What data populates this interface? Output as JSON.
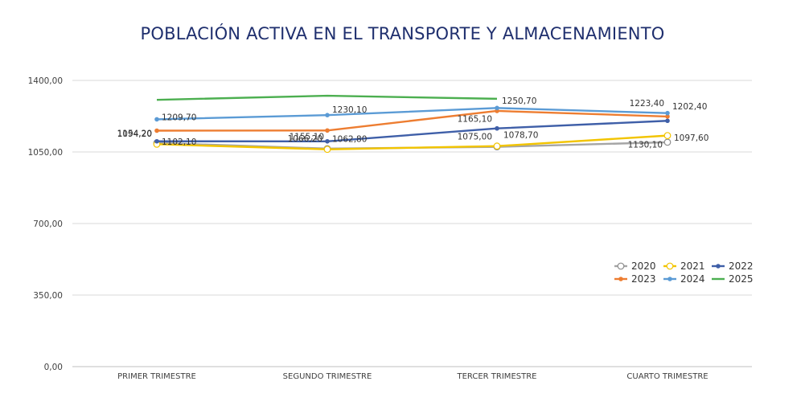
{
  "chart_data": {
    "type": "line",
    "title": "POBLACIÓN ACTIVA EN EL TRANSPORTE Y ALMACENAMIENTO",
    "xlabel": "",
    "ylabel": "",
    "categories": [
      "PRIMER TRIMESTRE",
      "SEGUNDO TRIMESTRE",
      "TERCER TRIMESTRE",
      "CUARTO TRIMESTRE"
    ],
    "ylim": [
      0,
      1400
    ],
    "yticks": [
      "0,00",
      "350,00",
      "700,00",
      "1050,00",
      "1400,00"
    ],
    "ytick_values": [
      0,
      350,
      700,
      1050,
      1400
    ],
    "grid": true,
    "legend": "right",
    "series": [
      {
        "name": "2020",
        "color": "#a5a5a5",
        "marker": "open-circle",
        "values": [
          1094.2,
          1066.2,
          1075.0,
          1097.6
        ],
        "labels": [
          "1094,20",
          "1066,20",
          "1075,00",
          "1097,60"
        ]
      },
      {
        "name": "2021",
        "color": "#f2c400",
        "marker": "open-circle",
        "values": [
          1088.0,
          1062.8,
          1078.7,
          1130.1
        ],
        "labels": [
          "",
          "1062,80",
          "1078,70",
          "1130,10"
        ]
      },
      {
        "name": "2022",
        "color": "#3f5fa8",
        "marker": "dot",
        "values": [
          1102.1,
          1102.0,
          1165.1,
          1202.4
        ],
        "labels": [
          "1102,10",
          "",
          "1165,10",
          "1202,40"
        ]
      },
      {
        "name": "2023",
        "color": "#ed7d31",
        "marker": "dot",
        "values": [
          1154.2,
          1155.1,
          1250.7,
          1223.4
        ],
        "labels": [
          "1154,20",
          "1155,10",
          "1250,70",
          "1223,40"
        ]
      },
      {
        "name": "2024",
        "color": "#5b9bd5",
        "marker": "dot",
        "values": [
          1209.7,
          1230.1,
          1265.0,
          1240.0
        ],
        "labels": [
          "1209,70",
          "1230,10",
          "",
          ""
        ]
      },
      {
        "name": "2025",
        "color": "#4caf50",
        "marker": "none",
        "values": [
          1305.0,
          1325.0,
          1310.0,
          null
        ],
        "labels": [
          "",
          "",
          "",
          ""
        ]
      }
    ]
  }
}
